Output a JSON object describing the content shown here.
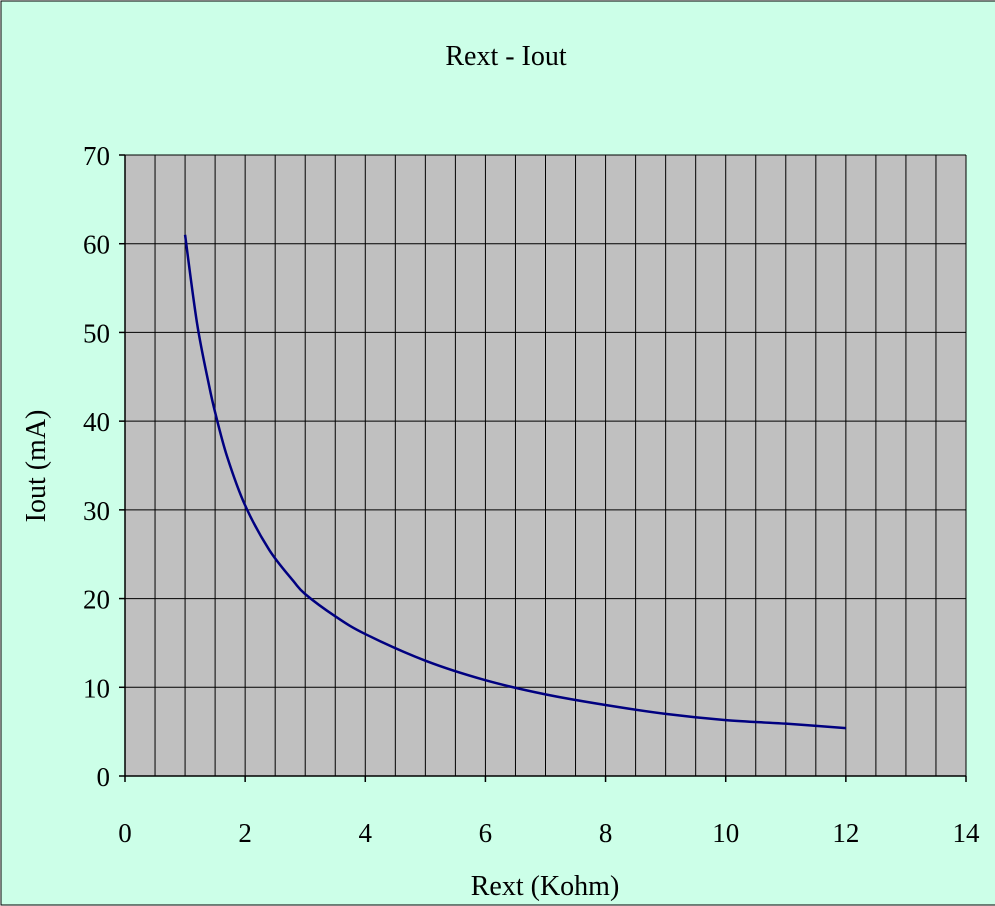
{
  "colors": {
    "background": "#ccffe8",
    "plot_area": "#c0c0c0",
    "grid": "#000000",
    "line": "#000080"
  },
  "chart_data": {
    "type": "line",
    "title": "Rext - Iout",
    "xlabel": "Rext (Kohm)",
    "ylabel": "Iout (mA)",
    "xlim": [
      0,
      14
    ],
    "ylim": [
      0,
      70
    ],
    "x_ticks": [
      0,
      2,
      4,
      6,
      8,
      10,
      12,
      14
    ],
    "y_ticks": [
      0,
      10,
      20,
      30,
      40,
      50,
      60,
      70
    ],
    "x_ticks_labels": [
      "0",
      "2",
      "4",
      "6",
      "8",
      "10",
      "12",
      "14"
    ],
    "y_ticks_labels": [
      "0",
      "10",
      "20",
      "30",
      "40",
      "50",
      "60",
      "70"
    ],
    "grid": true,
    "x_grid_step": 0.5,
    "y_grid_step": 10,
    "series": [
      {
        "x": [
          1,
          1.2,
          1.4,
          1.5,
          1.7,
          2,
          2.4,
          2.8,
          3,
          3.5,
          4,
          5,
          6,
          7,
          8,
          9,
          10,
          11,
          12
        ],
        "y": [
          61,
          51,
          44,
          41,
          36,
          30.5,
          25.5,
          22,
          20.5,
          18,
          16,
          13,
          10.8,
          9.2,
          8,
          7,
          6.3,
          5.9,
          5.4
        ]
      }
    ]
  }
}
